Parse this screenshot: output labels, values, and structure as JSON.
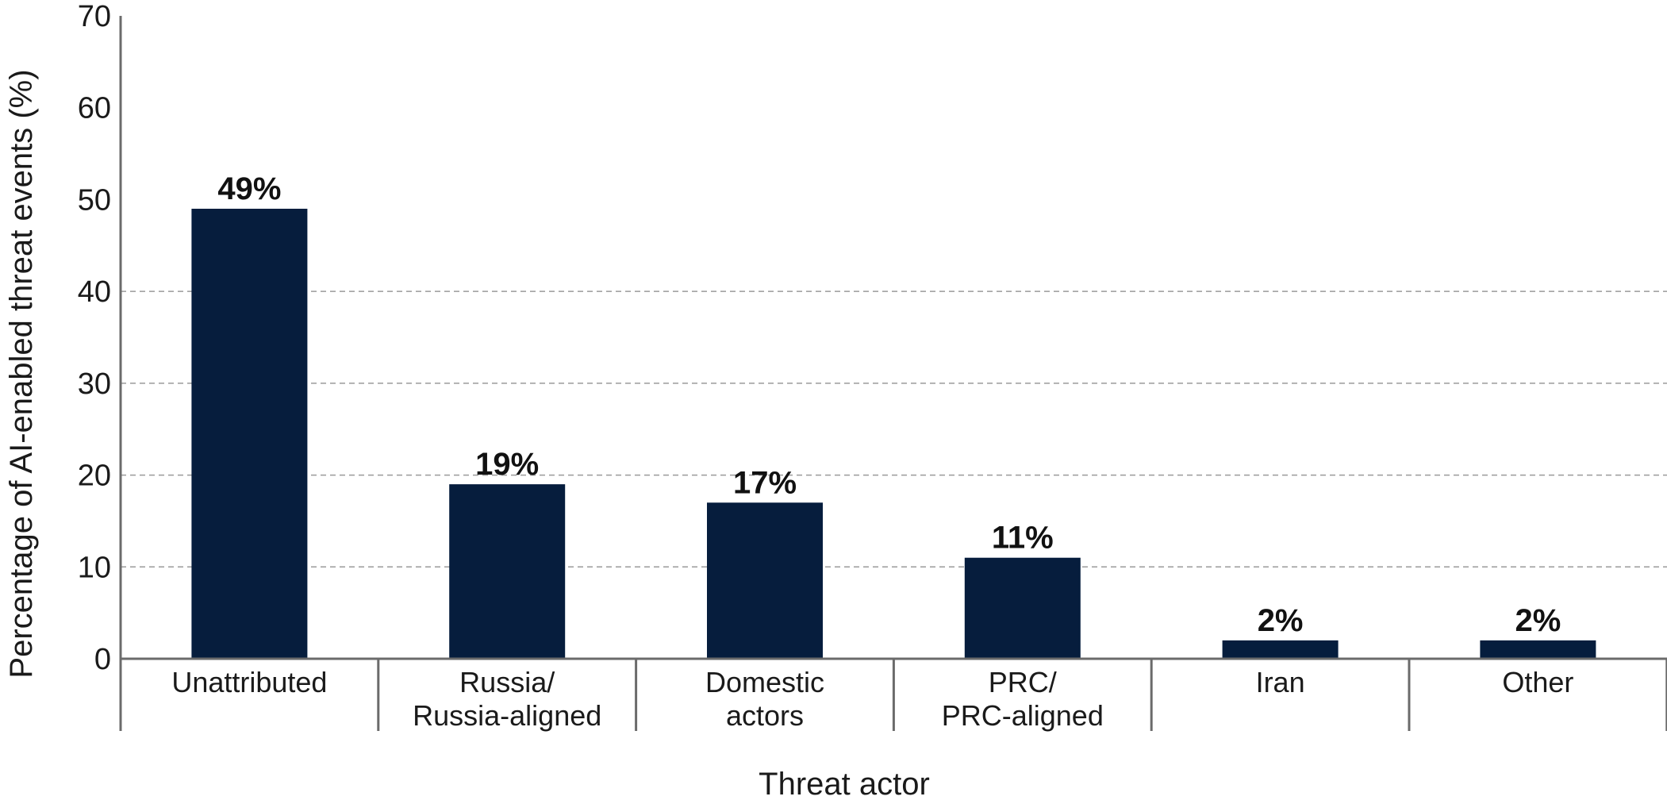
{
  "chart_data": {
    "type": "bar",
    "categories": [
      [
        "Unattributed"
      ],
      [
        "Russia/",
        "Russia-aligned"
      ],
      [
        "Domestic",
        "actors"
      ],
      [
        "PRC/",
        "PRC-aligned"
      ],
      [
        "Iran"
      ],
      [
        "Other"
      ]
    ],
    "values": [
      49,
      19,
      17,
      11,
      2,
      2
    ],
    "data_labels": [
      "49%",
      "19%",
      "17%",
      "11%",
      "2%",
      "2%"
    ],
    "xlabel": "Threat actor",
    "ylabel": "Percentage of AI-enabled threat events (%)",
    "ylim": [
      0,
      70
    ],
    "yticks": [
      0,
      10,
      20,
      30,
      40,
      50,
      60,
      70
    ],
    "ytick_labels": [
      "0",
      "10",
      "20",
      "30",
      "40",
      "50",
      "60",
      "70"
    ],
    "grid": "horizontal dashed",
    "bar_color": "#061d3d",
    "axis_color": "#6b6b6b",
    "grid_color": "#9a9a9a"
  }
}
